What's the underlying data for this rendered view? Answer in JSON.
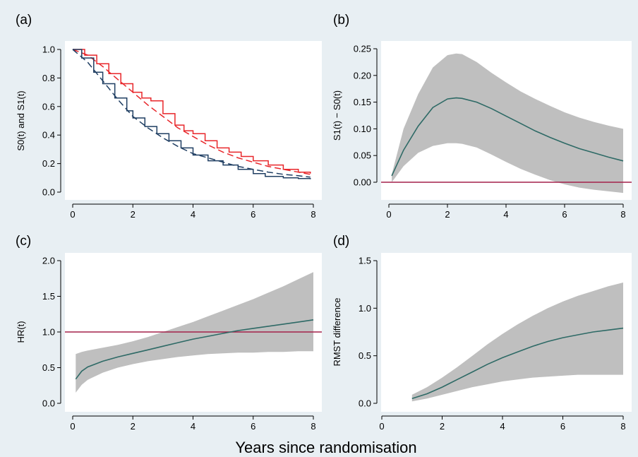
{
  "colors": {
    "background": "#e8eff3",
    "plot_area": "#ffffff",
    "red": "#e8262a",
    "navy": "#1f3e62",
    "teal": "#2e6a66",
    "band": "#bfbfbf",
    "refline": "#a3204a"
  },
  "global_xlabel": "Years since randomisation",
  "chart_data": [
    {
      "panel": "(a)",
      "type": "line",
      "ylabel": "S0(t) and S1(t)",
      "xlim": [
        0,
        8
      ],
      "ylim": [
        0,
        1
      ],
      "xticks": [
        "0",
        "2",
        "4",
        "6",
        "8"
      ],
      "yticks": [
        "0.0",
        "0.2",
        "0.4",
        "0.6",
        "0.8",
        "1.0"
      ],
      "series": [
        {
          "color": "red",
          "style": "step",
          "x": [
            0.0,
            0.4,
            0.8,
            1.2,
            1.6,
            2.0,
            2.3,
            2.6,
            3.0,
            3.4,
            3.7,
            4.0,
            4.4,
            4.8,
            5.2,
            5.6,
            6.0,
            6.5,
            7.0,
            7.5,
            7.9
          ],
          "y": [
            1.0,
            0.96,
            0.9,
            0.83,
            0.76,
            0.7,
            0.66,
            0.64,
            0.55,
            0.47,
            0.43,
            0.41,
            0.36,
            0.31,
            0.28,
            0.25,
            0.22,
            0.19,
            0.16,
            0.14,
            0.13
          ]
        },
        {
          "color": "red",
          "style": "dash",
          "x": [
            0.0,
            0.5,
            1.0,
            1.5,
            2.0,
            2.5,
            3.0,
            3.5,
            4.0,
            4.5,
            5.0,
            5.5,
            6.0,
            6.5,
            7.0,
            7.5,
            7.9
          ],
          "y": [
            1.0,
            0.96,
            0.88,
            0.79,
            0.7,
            0.61,
            0.53,
            0.45,
            0.39,
            0.33,
            0.28,
            0.24,
            0.21,
            0.18,
            0.16,
            0.14,
            0.125
          ]
        },
        {
          "color": "navy",
          "style": "step",
          "x": [
            0.0,
            0.3,
            0.7,
            1.0,
            1.4,
            1.8,
            2.0,
            2.4,
            2.8,
            3.2,
            3.6,
            4.0,
            4.5,
            5.0,
            5.5,
            6.0,
            6.4,
            7.0,
            7.5,
            7.9
          ],
          "y": [
            1.0,
            0.94,
            0.84,
            0.76,
            0.66,
            0.57,
            0.52,
            0.46,
            0.41,
            0.36,
            0.31,
            0.26,
            0.22,
            0.19,
            0.16,
            0.13,
            0.11,
            0.1,
            0.095,
            0.09
          ]
        },
        {
          "color": "navy",
          "style": "dash",
          "x": [
            0.0,
            0.5,
            1.0,
            1.5,
            2.0,
            2.5,
            3.0,
            3.5,
            4.0,
            4.5,
            5.0,
            5.5,
            6.0,
            6.5,
            7.0,
            7.5,
            7.9
          ],
          "y": [
            1.0,
            0.91,
            0.78,
            0.65,
            0.53,
            0.45,
            0.38,
            0.32,
            0.27,
            0.24,
            0.21,
            0.18,
            0.16,
            0.14,
            0.125,
            0.115,
            0.105
          ]
        }
      ]
    },
    {
      "panel": "(b)",
      "type": "area",
      "ylabel": "S1(t) − S0(t)",
      "xlim": [
        0,
        8
      ],
      "ylim": [
        -0.02,
        0.25
      ],
      "xticks": [
        "0",
        "2",
        "4",
        "6",
        "8"
      ],
      "yticks": [
        "0.00",
        "0.05",
        "0.10",
        "0.15",
        "0.20",
        "0.25"
      ],
      "refline": 0,
      "x": [
        0.1,
        0.5,
        1.0,
        1.5,
        2.0,
        2.3,
        2.5,
        3.0,
        3.5,
        4.0,
        4.5,
        5.0,
        5.5,
        6.0,
        6.5,
        7.0,
        7.5,
        8.0
      ],
      "estimate": [
        0.012,
        0.06,
        0.105,
        0.14,
        0.156,
        0.158,
        0.157,
        0.15,
        0.138,
        0.124,
        0.11,
        0.096,
        0.084,
        0.073,
        0.063,
        0.055,
        0.047,
        0.04
      ],
      "upper": [
        0.015,
        0.1,
        0.165,
        0.215,
        0.238,
        0.241,
        0.24,
        0.225,
        0.205,
        0.187,
        0.17,
        0.156,
        0.143,
        0.131,
        0.121,
        0.113,
        0.106,
        0.1
      ],
      "lower": [
        0.0,
        0.03,
        0.055,
        0.068,
        0.073,
        0.073,
        0.072,
        0.065,
        0.052,
        0.038,
        0.025,
        0.014,
        0.004,
        -0.004,
        -0.01,
        -0.014,
        -0.017,
        -0.02
      ]
    },
    {
      "panel": "(c)",
      "type": "area",
      "ylabel": "HR(t)",
      "xlim": [
        0,
        8
      ],
      "ylim": [
        0,
        2
      ],
      "xticks": [
        "0",
        "2",
        "4",
        "6",
        "8"
      ],
      "yticks": [
        "0.0",
        "0.5",
        "1.0",
        "1.5",
        "2.0"
      ],
      "refline": 1,
      "x": [
        0.1,
        0.3,
        0.5,
        1.0,
        1.5,
        2.0,
        2.5,
        3.0,
        3.5,
        4.0,
        4.5,
        5.0,
        5.5,
        6.0,
        6.5,
        7.0,
        7.5,
        8.0
      ],
      "estimate": [
        0.34,
        0.45,
        0.51,
        0.59,
        0.65,
        0.7,
        0.75,
        0.8,
        0.85,
        0.9,
        0.94,
        0.98,
        1.02,
        1.05,
        1.08,
        1.11,
        1.14,
        1.17
      ],
      "upper": [
        0.69,
        0.72,
        0.74,
        0.78,
        0.82,
        0.87,
        0.93,
        1.0,
        1.07,
        1.14,
        1.22,
        1.3,
        1.38,
        1.46,
        1.55,
        1.64,
        1.74,
        1.84
      ],
      "lower": [
        0.15,
        0.26,
        0.33,
        0.43,
        0.5,
        0.55,
        0.59,
        0.62,
        0.65,
        0.67,
        0.69,
        0.7,
        0.71,
        0.71,
        0.72,
        0.72,
        0.73,
        0.73
      ]
    },
    {
      "panel": "(d)",
      "type": "area",
      "ylabel": "RMST difference",
      "xlim": [
        0,
        8
      ],
      "ylim": [
        0,
        1.5
      ],
      "xticks": [
        "0",
        "2",
        "4",
        "6",
        "8"
      ],
      "yticks": [
        "0.0",
        "0.5",
        "1.0",
        "1.5"
      ],
      "x": [
        1.0,
        1.5,
        2.0,
        2.5,
        3.0,
        3.5,
        4.0,
        4.5,
        5.0,
        5.5,
        6.0,
        6.5,
        7.0,
        7.5,
        8.0
      ],
      "estimate": [
        0.05,
        0.1,
        0.17,
        0.25,
        0.33,
        0.41,
        0.48,
        0.54,
        0.6,
        0.65,
        0.69,
        0.72,
        0.75,
        0.77,
        0.79
      ],
      "upper": [
        0.09,
        0.17,
        0.27,
        0.38,
        0.5,
        0.62,
        0.73,
        0.83,
        0.92,
        1.0,
        1.07,
        1.13,
        1.18,
        1.23,
        1.27
      ],
      "lower": [
        0.02,
        0.05,
        0.09,
        0.13,
        0.17,
        0.2,
        0.23,
        0.25,
        0.27,
        0.28,
        0.29,
        0.3,
        0.3,
        0.3,
        0.3
      ]
    }
  ]
}
